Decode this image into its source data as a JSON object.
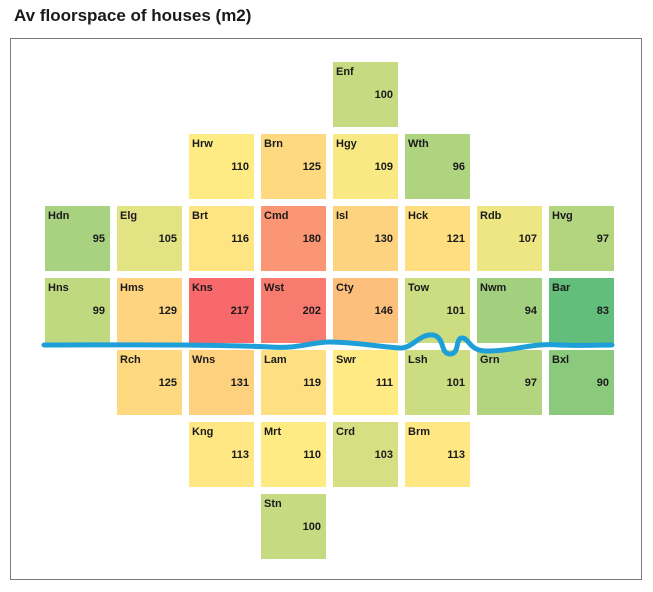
{
  "chart_data": {
    "type": "heatmap",
    "title": "Av floorspace of houses (m2)",
    "color_scale": {
      "low": "#63be7b",
      "mid": "#ffeb84",
      "high": "#f8696b"
    },
    "river_color": "#1e9fd8",
    "tiles": [
      {
        "code": "Enf",
        "row": 0,
        "col": 4,
        "value": 100
      },
      {
        "code": "Hrw",
        "row": 1,
        "col": 2,
        "value": 110
      },
      {
        "code": "Brn",
        "row": 1,
        "col": 3,
        "value": 125
      },
      {
        "code": "Hgy",
        "row": 1,
        "col": 4,
        "value": 109
      },
      {
        "code": "Wth",
        "row": 1,
        "col": 5,
        "value": 96
      },
      {
        "code": "Hdn",
        "row": 2,
        "col": 0,
        "value": 95
      },
      {
        "code": "Elg",
        "row": 2,
        "col": 1,
        "value": 105
      },
      {
        "code": "Brt",
        "row": 2,
        "col": 2,
        "value": 116
      },
      {
        "code": "Cmd",
        "row": 2,
        "col": 3,
        "value": 180
      },
      {
        "code": "Isl",
        "row": 2,
        "col": 4,
        "value": 130
      },
      {
        "code": "Hck",
        "row": 2,
        "col": 5,
        "value": 121
      },
      {
        "code": "Rdb",
        "row": 2,
        "col": 6,
        "value": 107
      },
      {
        "code": "Hvg",
        "row": 2,
        "col": 7,
        "value": 97
      },
      {
        "code": "Hns",
        "row": 3,
        "col": 0,
        "value": 99
      },
      {
        "code": "Hms",
        "row": 3,
        "col": 1,
        "value": 129
      },
      {
        "code": "Kns",
        "row": 3,
        "col": 2,
        "value": 217
      },
      {
        "code": "Wst",
        "row": 3,
        "col": 3,
        "value": 202
      },
      {
        "code": "Cty",
        "row": 3,
        "col": 4,
        "value": 146
      },
      {
        "code": "Tow",
        "row": 3,
        "col": 5,
        "value": 101
      },
      {
        "code": "Nwm",
        "row": 3,
        "col": 6,
        "value": 94
      },
      {
        "code": "Bar",
        "row": 3,
        "col": 7,
        "value": 83
      },
      {
        "code": "Rch",
        "row": 4,
        "col": 1,
        "value": 125
      },
      {
        "code": "Wns",
        "row": 4,
        "col": 2,
        "value": 131
      },
      {
        "code": "Lam",
        "row": 4,
        "col": 3,
        "value": 119
      },
      {
        "code": "Swr",
        "row": 4,
        "col": 4,
        "value": 111
      },
      {
        "code": "Lsh",
        "row": 4,
        "col": 5,
        "value": 101
      },
      {
        "code": "Grn",
        "row": 4,
        "col": 6,
        "value": 97
      },
      {
        "code": "Bxl",
        "row": 4,
        "col": 7,
        "value": 90
      },
      {
        "code": "Kng",
        "row": 5,
        "col": 2,
        "value": 113
      },
      {
        "code": "Mrt",
        "row": 5,
        "col": 3,
        "value": 110
      },
      {
        "code": "Crd",
        "row": 5,
        "col": 4,
        "value": 103
      },
      {
        "code": "Brm",
        "row": 5,
        "col": 5,
        "value": 113
      },
      {
        "code": "Stn",
        "row": 6,
        "col": 3,
        "value": 100
      }
    ]
  }
}
